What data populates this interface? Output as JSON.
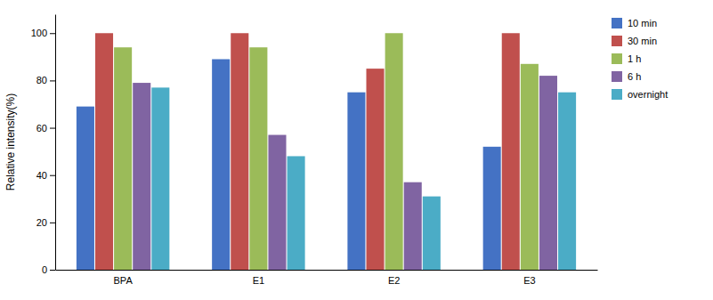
{
  "chart_data": {
    "type": "bar",
    "categories": [
      "BPA",
      "E1",
      "E2",
      "E3"
    ],
    "series": [
      {
        "name": "10 min",
        "color": "#4472C4",
        "values": [
          69,
          89,
          75,
          52
        ]
      },
      {
        "name": "30 min",
        "color": "#C0504D",
        "values": [
          100,
          100,
          85,
          100
        ]
      },
      {
        "name": "1 h",
        "color": "#9BBB59",
        "values": [
          94,
          94,
          100,
          87
        ]
      },
      {
        "name": "6 h",
        "color": "#8064A2",
        "values": [
          79,
          57,
          37,
          82
        ]
      },
      {
        "name": "overnight",
        "color": "#4BACC6",
        "values": [
          77,
          48,
          31,
          75
        ]
      }
    ],
    "ylabel": "Relative intensity(%)",
    "ylim": [
      0,
      108
    ],
    "yticks": [
      0,
      20,
      40,
      60,
      80,
      100
    ],
    "grid": false,
    "legend": "right"
  }
}
